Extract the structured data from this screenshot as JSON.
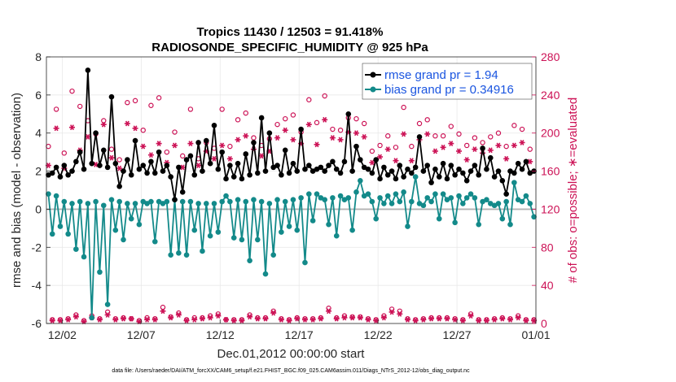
{
  "chart_data": {
    "type": "line",
    "title_line1": "Tropics 11430 / 12503 = 91.418%",
    "title_line2": "RADIOSONDE_SPECIFIC_HUMIDITY @ 925 hPa",
    "xlabel": "Dec.01,2012 00:00:00 start",
    "ylabel_left": "rmse and bias (model - observation)",
    "ylabel_right": "# of obs: o=possible; ∗=evaluated",
    "footnote": "data file: /Users/raeder/DAI/ATM_forcXX/CAM6_setup/f.e21.FHIST_BGC.f09_025.CAM6assim.011/Diags_NTrS_2012-12/obs_diag_output.nc",
    "xlim": [
      0,
      31
    ],
    "ylim_left": [
      -6,
      8
    ],
    "ylim_right": [
      0,
      280
    ],
    "left_ticks": [
      "-6",
      "-4",
      "-2",
      "0",
      "2",
      "4",
      "6",
      "8"
    ],
    "left_tick_values": [
      -6,
      -4,
      -2,
      0,
      2,
      4,
      6,
      8
    ],
    "right_ticks": [
      "0",
      "40",
      "80",
      "120",
      "160",
      "200",
      "240",
      "280"
    ],
    "right_tick_values": [
      0,
      40,
      80,
      120,
      160,
      200,
      240,
      280
    ],
    "x_tick_labels": [
      "12/02",
      "12/07",
      "12/12",
      "12/17",
      "12/22",
      "12/27",
      "01/01"
    ],
    "x_tick_values": [
      1,
      6,
      11,
      16,
      21,
      26,
      31
    ],
    "colors": {
      "rmse": "#000000",
      "bias": "#138a8a",
      "obs": "#cc1155",
      "zero_line": "#b3b3b3",
      "legend_text": "#1a55e0"
    },
    "series": [
      {
        "name": "rmse grand pr = 1.94",
        "axis": "left",
        "x": [
          0.125,
          0.375,
          0.625,
          0.875,
          1.125,
          1.375,
          1.625,
          1.875,
          2.125,
          2.375,
          2.625,
          2.875,
          3.125,
          3.375,
          3.625,
          3.875,
          4.125,
          4.375,
          4.625,
          4.875,
          5.125,
          5.375,
          5.625,
          5.875,
          6.125,
          6.375,
          6.625,
          6.875,
          7.125,
          7.375,
          7.625,
          7.875,
          8.125,
          8.375,
          8.625,
          8.875,
          9.125,
          9.375,
          9.625,
          9.875,
          10.125,
          10.375,
          10.625,
          10.875,
          11.125,
          11.375,
          11.625,
          11.875,
          12.125,
          12.375,
          12.625,
          12.875,
          13.125,
          13.375,
          13.625,
          13.875,
          14.125,
          14.375,
          14.625,
          14.875,
          15.125,
          15.375,
          15.625,
          15.875,
          16.125,
          16.375,
          16.625,
          16.875,
          17.125,
          17.375,
          17.625,
          17.875,
          18.125,
          18.375,
          18.625,
          18.875,
          19.125,
          19.375,
          19.625,
          19.875,
          20.125,
          20.375,
          20.625,
          20.875,
          21.125,
          21.375,
          21.625,
          21.875,
          22.125,
          22.375,
          22.625,
          22.875,
          23.125,
          23.375,
          23.625,
          23.875,
          24.125,
          24.375,
          24.625,
          24.875,
          25.125,
          25.375,
          25.625,
          25.875,
          26.125,
          26.375,
          26.625,
          26.875,
          27.125,
          27.375,
          27.625,
          27.875,
          28.125,
          28.375,
          28.625,
          28.875,
          29.125,
          29.375,
          29.625,
          29.875,
          30.125,
          30.375,
          30.625,
          30.875
        ],
        "values": [
          1.8,
          1.9,
          2.2,
          1.7,
          2.3,
          1.8,
          2.0,
          2.5,
          3.0,
          2.1,
          7.3,
          2.4,
          4.0,
          2.3,
          3.1,
          2.2,
          5.9,
          2.4,
          1.2,
          2.0,
          2.6,
          1.8,
          3.6,
          2.1,
          2.3,
          1.9,
          2.5,
          1.9,
          3.0,
          2.0,
          2.3,
          1.7,
          0.5,
          2.2,
          0.9,
          2.6,
          2.8,
          1.8,
          3.5,
          2.0,
          3.6,
          2.4,
          4.4,
          2.1,
          3.0,
          1.6,
          2.3,
          1.7,
          2.4,
          1.6,
          2.9,
          1.8,
          3.5,
          1.9,
          4.8,
          2.0,
          4.0,
          2.2,
          2.3,
          1.8,
          3.1,
          1.9,
          2.4,
          2.0,
          4.2,
          2.1,
          2.3,
          2.0,
          2.1,
          2.2,
          2.0,
          2.3,
          2.5,
          2.1,
          1.9,
          2.5,
          5.0,
          2.0,
          3.3,
          2.6,
          2.2,
          2.1,
          1.9,
          2.6,
          1.6,
          2.2,
          1.8,
          2.0,
          1.6,
          2.3,
          1.7,
          2.1,
          1.9,
          2.2,
          3.8,
          2.0,
          2.3,
          1.4,
          2.1,
          1.7,
          2.4,
          1.6,
          2.3,
          1.8,
          2.1,
          1.9,
          1.5,
          2.0,
          2.3,
          1.8,
          3.2,
          2.1,
          2.7,
          1.7,
          2.0,
          1.5,
          0.8,
          2.0,
          1.9,
          2.4,
          2.1,
          2.5,
          1.9,
          2.0
        ]
      },
      {
        "name": "bias grand pr = 0.34916",
        "axis": "left",
        "x": [
          0.125,
          0.375,
          0.625,
          0.875,
          1.125,
          1.375,
          1.625,
          1.875,
          2.125,
          2.375,
          2.625,
          2.875,
          3.125,
          3.375,
          3.625,
          3.875,
          4.125,
          4.375,
          4.625,
          4.875,
          5.125,
          5.375,
          5.625,
          5.875,
          6.125,
          6.375,
          6.625,
          6.875,
          7.125,
          7.375,
          7.625,
          7.875,
          8.125,
          8.375,
          8.625,
          8.875,
          9.125,
          9.375,
          9.625,
          9.875,
          10.125,
          10.375,
          10.625,
          10.875,
          11.125,
          11.375,
          11.625,
          11.875,
          12.125,
          12.375,
          12.625,
          12.875,
          13.125,
          13.375,
          13.625,
          13.875,
          14.125,
          14.375,
          14.625,
          14.875,
          15.125,
          15.375,
          15.625,
          15.875,
          16.125,
          16.375,
          16.625,
          16.875,
          17.125,
          17.375,
          17.625,
          17.875,
          18.125,
          18.375,
          18.625,
          18.875,
          19.125,
          19.375,
          19.625,
          19.875,
          20.125,
          20.375,
          20.625,
          20.875,
          21.125,
          21.375,
          21.625,
          21.875,
          22.125,
          22.375,
          22.625,
          22.875,
          23.125,
          23.375,
          23.625,
          23.875,
          24.125,
          24.375,
          24.625,
          24.875,
          25.125,
          25.375,
          25.625,
          25.875,
          26.125,
          26.375,
          26.625,
          26.875,
          27.125,
          27.375,
          27.625,
          27.875,
          28.125,
          28.375,
          28.625,
          28.875,
          29.125,
          29.375,
          29.625,
          29.875,
          30.125,
          30.375,
          30.625,
          30.875
        ],
        "values": [
          0.8,
          -1.3,
          0.7,
          -0.9,
          0.4,
          -1.3,
          0.3,
          -2.1,
          0.4,
          -2.5,
          0.3,
          -5.7,
          0.4,
          -3.3,
          0.2,
          -5.0,
          0.5,
          -1.1,
          0.4,
          -1.6,
          0.3,
          -0.5,
          0.3,
          -0.8,
          0.4,
          0.3,
          0.4,
          -1.7,
          0.4,
          0.3,
          0.4,
          -2.4,
          0.5,
          -2.3,
          0.4,
          -2.4,
          0.4,
          -1.1,
          0.3,
          -2.2,
          0.3,
          -1.4,
          0.3,
          -1.2,
          0.4,
          0.7,
          0.4,
          -1.5,
          0.5,
          -1.6,
          0.4,
          -2.7,
          0.5,
          -1.6,
          0.4,
          -3.4,
          0.3,
          -2.4,
          0.5,
          -1.2,
          0.4,
          -0.9,
          0.5,
          -1.1,
          0.6,
          -2.8,
          0.8,
          -0.6,
          0.8,
          0.6,
          0.5,
          -0.8,
          0.6,
          -1.4,
          0.7,
          0.5,
          0.6,
          -1.1,
          0.9,
          1.5,
          0.7,
          0.8,
          0.4,
          -0.5,
          0.6,
          0.3,
          0.7,
          0.3,
          0.8,
          0.4,
          0.9,
          -0.9,
          0.4,
          1.7,
          0.3,
          0.2,
          0.6,
          0.4,
          0.8,
          -0.5,
          0.8,
          0.5,
          0.6,
          -0.7,
          0.7,
          0.3,
          0.6,
          0.8,
          0.6,
          -0.8,
          0.4,
          0.5,
          0.3,
          0.2,
          0.3,
          -0.5,
          0.4,
          -0.8,
          1.4,
          0.5,
          0.4,
          0.7,
          0.3,
          -0.4
        ]
      },
      {
        "name": "obs possible (o)",
        "axis": "right",
        "x": [
          0.125,
          0.375,
          0.625,
          0.875,
          1.125,
          1.375,
          1.625,
          1.875,
          2.125,
          2.375,
          2.625,
          2.875,
          3.125,
          3.375,
          3.625,
          3.875,
          4.125,
          4.375,
          4.625,
          4.875,
          5.125,
          5.375,
          5.625,
          5.875,
          6.125,
          6.375,
          6.625,
          6.875,
          7.125,
          7.375,
          7.625,
          7.875,
          8.125,
          8.375,
          8.625,
          8.875,
          9.125,
          9.375,
          9.625,
          9.875,
          10.125,
          10.375,
          10.625,
          10.875,
          11.125,
          11.375,
          11.625,
          11.875,
          12.125,
          12.375,
          12.625,
          12.875,
          13.125,
          13.375,
          13.625,
          13.875,
          14.125,
          14.375,
          14.625,
          14.875,
          15.125,
          15.375,
          15.625,
          15.875,
          16.125,
          16.375,
          16.625,
          16.875,
          17.125,
          17.375,
          17.625,
          17.875,
          18.125,
          18.375,
          18.625,
          18.875,
          19.125,
          19.375,
          19.625,
          19.875,
          20.125,
          20.375,
          20.625,
          20.875,
          21.125,
          21.375,
          21.625,
          21.875,
          22.125,
          22.375,
          22.625,
          22.875,
          23.125,
          23.375,
          23.625,
          23.875,
          24.125,
          24.375,
          24.625,
          24.875,
          25.125,
          25.375,
          25.625,
          25.875,
          26.125,
          26.375,
          26.625,
          26.875,
          27.125,
          27.375,
          27.625,
          27.875,
          28.125,
          28.375,
          28.625,
          28.875,
          29.125,
          29.375,
          29.625,
          29.875,
          30.125,
          30.375,
          30.625,
          30.875
        ],
        "values": [
          186,
          4,
          225,
          4,
          179,
          5,
          244,
          9,
          228,
          3,
          213,
          8,
          199,
          5,
          213,
          12,
          183,
          5,
          172,
          6,
          232,
          5,
          234,
          3,
          203,
          6,
          229,
          5,
          237,
          17,
          180,
          7,
          201,
          11,
          176,
          4,
          225,
          6,
          173,
          6,
          190,
          8,
          184,
          10,
          225,
          4,
          186,
          4,
          214,
          4,
          221,
          9,
          195,
          6,
          187,
          6,
          194,
          13,
          209,
          5,
          215,
          4,
          219,
          6,
          201,
          5,
          235,
          5,
          211,
          6,
          239,
          16,
          204,
          6,
          203,
          8,
          216,
          7,
          215,
          7,
          210,
          5,
          181,
          4,
          187,
          8,
          197,
          15,
          185,
          13,
          227,
          5,
          186,
          4,
          210,
          5,
          214,
          6,
          197,
          6,
          197,
          6,
          207,
          5,
          199,
          4,
          187,
          10,
          195,
          4,
          190,
          4,
          196,
          5,
          200,
          6,
          186,
          5,
          208,
          8,
          204,
          4,
          183,
          4
        ]
      },
      {
        "name": "obs evaluated (∗)",
        "axis": "right",
        "x": [
          0.125,
          0.375,
          0.625,
          0.875,
          1.125,
          1.375,
          1.625,
          1.875,
          2.125,
          2.375,
          2.625,
          2.875,
          3.125,
          3.375,
          3.625,
          3.875,
          4.125,
          4.375,
          4.625,
          4.875,
          5.125,
          5.375,
          5.625,
          5.875,
          6.125,
          6.375,
          6.625,
          6.875,
          7.125,
          7.375,
          7.625,
          7.875,
          8.125,
          8.375,
          8.625,
          8.875,
          9.125,
          9.375,
          9.625,
          9.875,
          10.125,
          10.375,
          10.625,
          10.875,
          11.125,
          11.375,
          11.625,
          11.875,
          12.125,
          12.375,
          12.625,
          12.875,
          13.125,
          13.375,
          13.625,
          13.875,
          14.125,
          14.375,
          14.625,
          14.875,
          15.125,
          15.375,
          15.625,
          15.875,
          16.125,
          16.375,
          16.625,
          16.875,
          17.125,
          17.375,
          17.625,
          17.875,
          18.125,
          18.375,
          18.625,
          18.875,
          19.125,
          19.375,
          19.625,
          19.875,
          20.125,
          20.375,
          20.625,
          20.875,
          21.125,
          21.375,
          21.625,
          21.875,
          22.125,
          22.375,
          22.625,
          22.875,
          23.125,
          23.375,
          23.625,
          23.875,
          24.125,
          24.375,
          24.625,
          24.875,
          25.125,
          25.375,
          25.625,
          25.875,
          26.125,
          26.375,
          26.625,
          26.875,
          27.125,
          27.375,
          27.625,
          27.875,
          28.125,
          28.375,
          28.625,
          28.875,
          29.125,
          29.375,
          29.625,
          29.875,
          30.125,
          30.375,
          30.625,
          30.875
        ],
        "values": [
          166,
          3,
          205,
          3,
          163,
          4,
          206,
          7,
          182,
          2,
          196,
          6,
          167,
          4,
          209,
          9,
          174,
          4,
          163,
          5,
          210,
          5,
          205,
          2,
          186,
          4,
          177,
          4,
          189,
          13,
          169,
          6,
          187,
          9,
          164,
          3,
          189,
          4,
          166,
          5,
          181,
          6,
          173,
          8,
          187,
          4,
          173,
          3,
          193,
          3,
          197,
          7,
          183,
          5,
          176,
          5,
          181,
          11,
          195,
          4,
          203,
          3,
          193,
          5,
          189,
          4,
          209,
          4,
          188,
          5,
          214,
          13,
          195,
          5,
          193,
          6,
          201,
          6,
          200,
          6,
          196,
          4,
          169,
          3,
          175,
          6,
          183,
          12,
          171,
          10,
          199,
          4,
          171,
          3,
          193,
          4,
          199,
          5,
          181,
          5,
          185,
          5,
          189,
          4,
          181,
          3,
          172,
          8,
          183,
          3,
          179,
          3,
          182,
          4,
          187,
          5,
          173,
          4,
          187,
          6,
          190,
          3,
          170,
          3
        ]
      }
    ],
    "legend": [
      "rmse grand pr = 1.94",
      "bias grand pr = 0.34916"
    ]
  }
}
